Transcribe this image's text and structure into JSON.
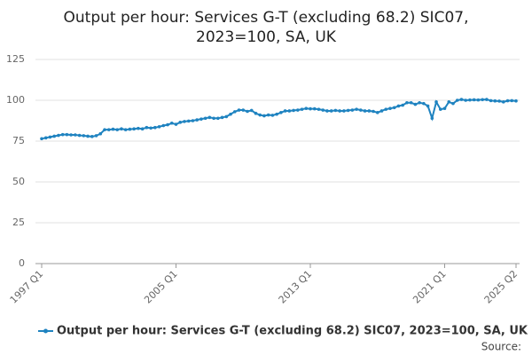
{
  "chart_data": {
    "type": "line",
    "title": [
      "Output per hour: Services G-T (excluding 68.2) SIC07,",
      "2023=100, SA, UK"
    ],
    "categories": [
      "1997 Q1",
      null,
      null,
      null,
      null,
      null,
      null,
      null,
      null,
      null,
      null,
      null,
      null,
      null,
      null,
      null,
      null,
      null,
      null,
      null,
      null,
      null,
      null,
      null,
      null,
      null,
      null,
      null,
      null,
      null,
      null,
      null,
      "2005 Q1",
      null,
      null,
      null,
      null,
      null,
      null,
      null,
      null,
      null,
      null,
      null,
      null,
      null,
      null,
      null,
      null,
      null,
      null,
      null,
      null,
      null,
      null,
      null,
      null,
      null,
      null,
      null,
      null,
      null,
      null,
      null,
      "2013 Q1",
      null,
      null,
      null,
      null,
      null,
      null,
      null,
      null,
      null,
      null,
      null,
      null,
      null,
      null,
      null,
      null,
      null,
      null,
      null,
      null,
      null,
      null,
      null,
      null,
      null,
      null,
      null,
      null,
      null,
      null,
      null,
      "2021 Q1",
      null,
      null,
      null,
      null,
      null,
      null,
      null,
      null,
      null,
      null,
      null,
      null,
      null,
      null,
      null,
      null,
      "2025 Q2"
    ],
    "series": [
      {
        "name": "Output per hour: Services G-T (excluding 68.2) SIC07, 2023=100, SA, UK",
        "color": "#1f83c0",
        "values": [
          76.5,
          77,
          77.5,
          78,
          78.5,
          79,
          79,
          78.8,
          78.8,
          78.5,
          78.3,
          78,
          77.8,
          78.3,
          79.5,
          82,
          82,
          82.3,
          82,
          82.5,
          82,
          82.3,
          82.5,
          82.8,
          82.5,
          83.3,
          83,
          83.3,
          83.8,
          84.5,
          85,
          86,
          85.3,
          86.5,
          87,
          87.3,
          87.5,
          88,
          88.5,
          89,
          89.5,
          89,
          89,
          89.5,
          90,
          91.5,
          93,
          94,
          94,
          93.2,
          93.8,
          92,
          91,
          90.5,
          91,
          90.8,
          91.5,
          92.5,
          93.5,
          93.5,
          93.8,
          94,
          94.5,
          95,
          94.8,
          94.8,
          94.5,
          94,
          93.5,
          93.5,
          93.8,
          93.5,
          93.5,
          93.8,
          94,
          94.5,
          94,
          93.5,
          93.5,
          93.2,
          92.5,
          93.5,
          94.5,
          95,
          95.5,
          96.5,
          97,
          98.5,
          98.5,
          97.5,
          98.5,
          98,
          96.5,
          89,
          99,
          94.5,
          95,
          99,
          98,
          100,
          100.5,
          100,
          100.2,
          100.3,
          100.2,
          100.4,
          100.5,
          99.8,
          99.6,
          99.5,
          99,
          99.7,
          99.8,
          99.6
        ]
      }
    ],
    "ylim": [
      0,
      125
    ],
    "yticks": [
      0,
      25,
      50,
      75,
      100,
      125
    ],
    "grid": true,
    "legend": "bottom",
    "source": "Source:"
  }
}
